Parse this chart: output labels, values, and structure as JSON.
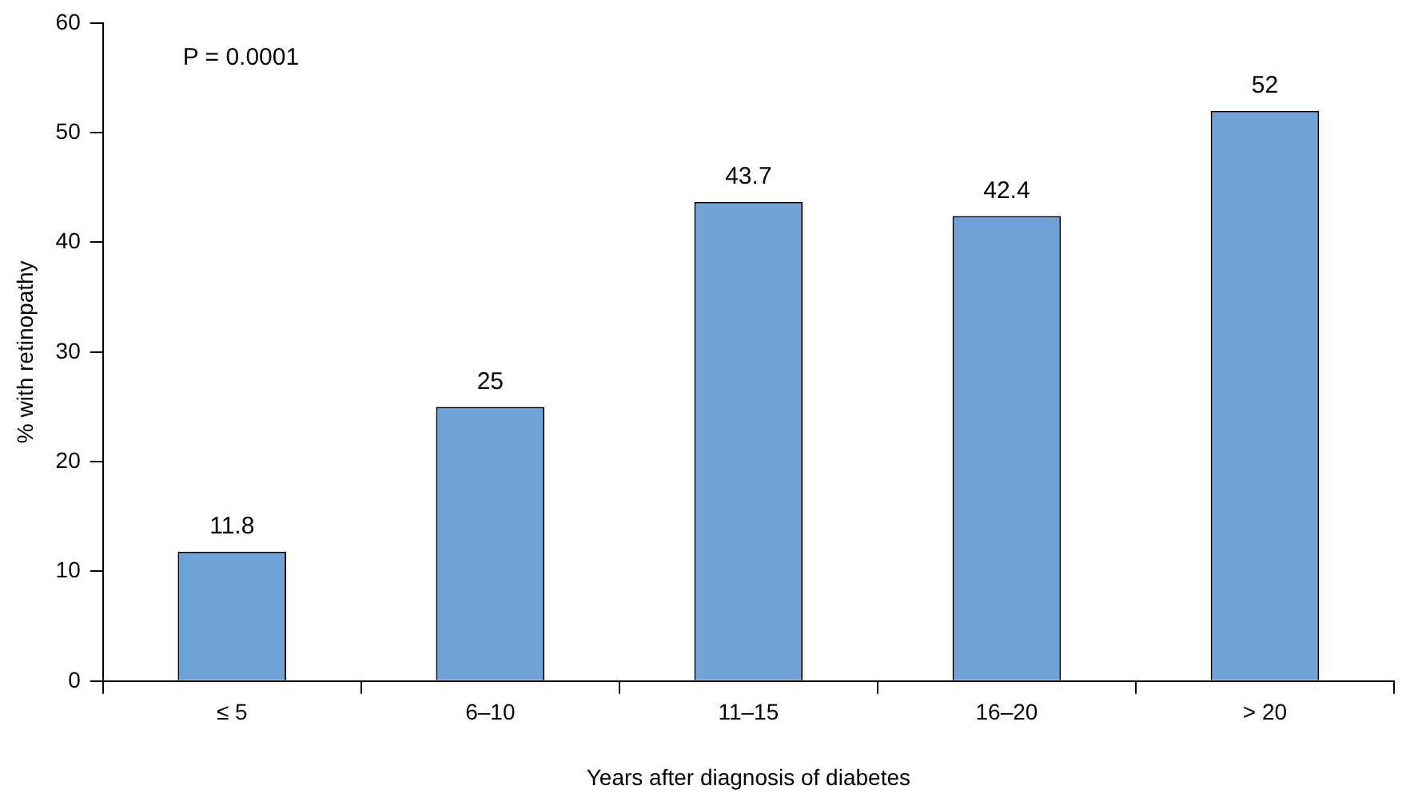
{
  "chart_data": {
    "type": "bar",
    "xlabel": "Years after diagnosis of diabetes",
    "ylabel": "% with retinopathy",
    "categories": [
      "≤ 5",
      "6–10",
      "11–15",
      "16–20",
      "> 20"
    ],
    "values": [
      11.8,
      25,
      43.7,
      42.4,
      52
    ],
    "color": "#6fa3d8",
    "ylim": [
      0,
      60
    ],
    "yticks": [
      0,
      10,
      20,
      30,
      40,
      50,
      60
    ],
    "grid": false,
    "data_labels": true,
    "legend": false,
    "annotations": [
      "P = 0.0001"
    ]
  }
}
